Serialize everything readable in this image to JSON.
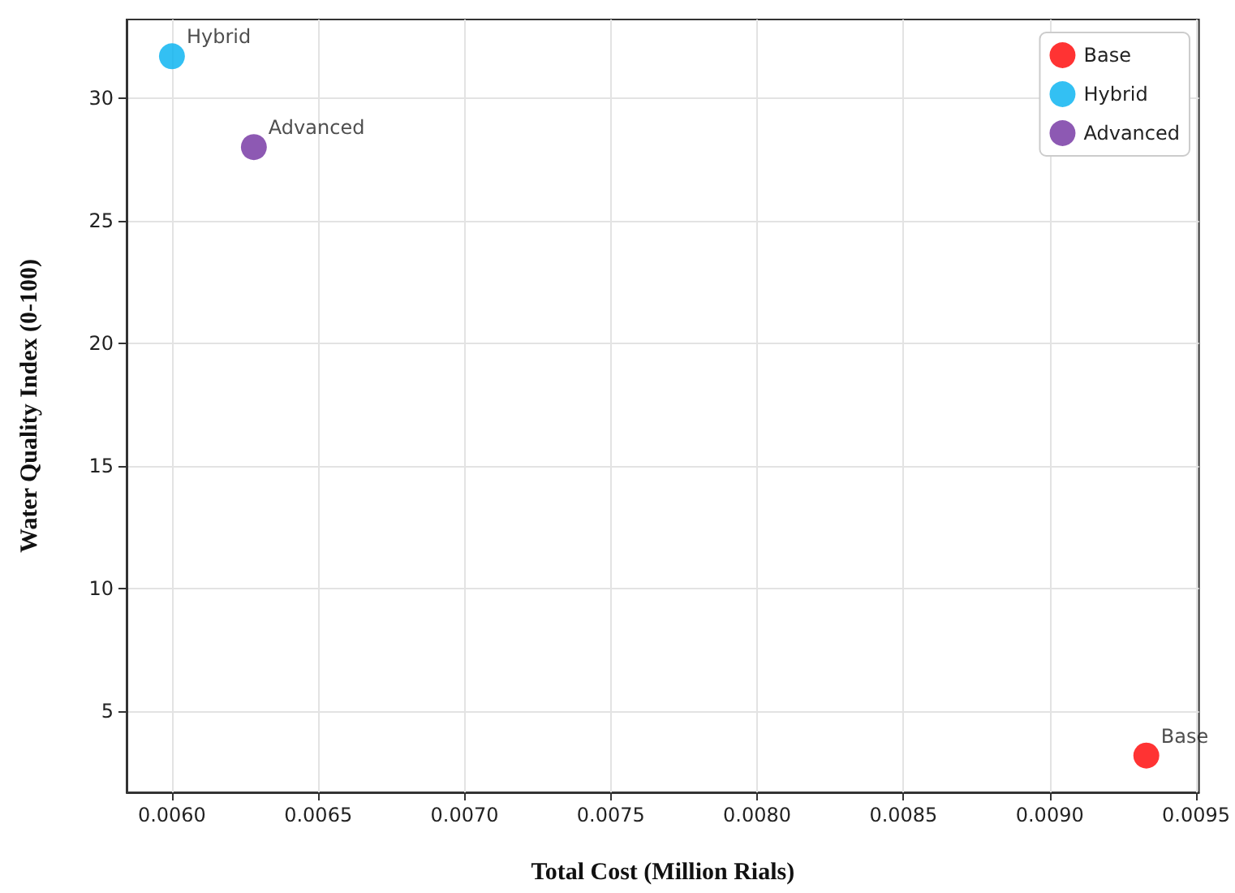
{
  "chart_data": {
    "type": "scatter",
    "xlabel": "Total Cost (Million Rials)",
    "ylabel": "Water Quality Index (0-100)",
    "series": [
      {
        "name": "Base",
        "color": "#ff0000",
        "x": [
          0.00933
        ],
        "values": [
          3.2
        ]
      },
      {
        "name": "Hybrid",
        "color": "#00b0f0",
        "x": [
          0.006
        ],
        "values": [
          31.7
        ]
      },
      {
        "name": "Advanced",
        "color": "#7030a0",
        "x": [
          0.00628
        ],
        "values": [
          28.0
        ]
      }
    ],
    "xlim": [
      0.005845,
      0.00951
    ],
    "xticks": [
      {
        "value": 0.006,
        "label": "0.0060"
      },
      {
        "value": 0.0065,
        "label": "0.0065"
      },
      {
        "value": 0.007,
        "label": "0.0070"
      },
      {
        "value": 0.0075,
        "label": "0.0075"
      },
      {
        "value": 0.008,
        "label": "0.0080"
      },
      {
        "value": 0.0085,
        "label": "0.0085"
      },
      {
        "value": 0.009,
        "label": "0.0090"
      },
      {
        "value": 0.0095,
        "label": "0.0095"
      }
    ],
    "ylim": [
      1.7,
      33.2
    ],
    "yticks": [
      5,
      10,
      15,
      20,
      25,
      30
    ],
    "grid": true,
    "legend": "top right",
    "marker": "circle"
  }
}
